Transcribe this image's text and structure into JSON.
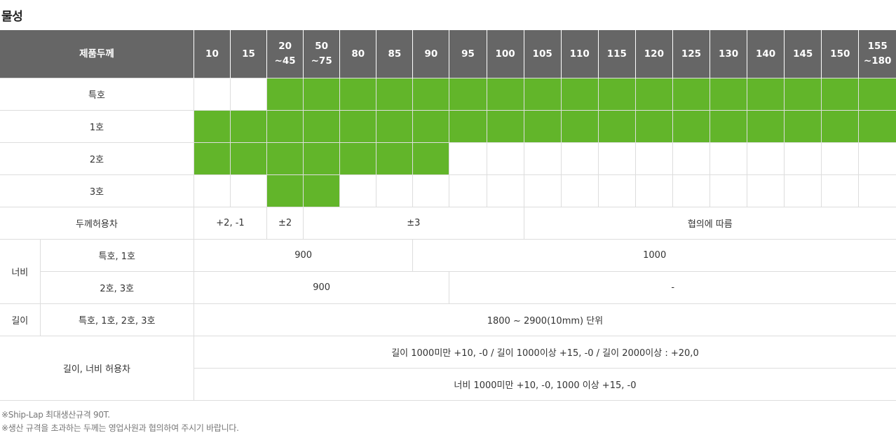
{
  "title": "물성",
  "table": {
    "header_label": "제품두께",
    "thickness": [
      [
        "10"
      ],
      [
        "15"
      ],
      [
        "20",
        "~45"
      ],
      [
        "50",
        "~75"
      ],
      [
        "80"
      ],
      [
        "85"
      ],
      [
        "90"
      ],
      [
        "95"
      ],
      [
        "100"
      ],
      [
        "105"
      ],
      [
        "110"
      ],
      [
        "115"
      ],
      [
        "120"
      ],
      [
        "125"
      ],
      [
        "130"
      ],
      [
        "140"
      ],
      [
        "145"
      ],
      [
        "150"
      ],
      [
        "155",
        "~180"
      ]
    ],
    "grades": [
      {
        "label": "특호",
        "available": [
          0,
          0,
          1,
          1,
          1,
          1,
          1,
          1,
          1,
          1,
          1,
          1,
          1,
          1,
          1,
          1,
          1,
          1,
          1
        ]
      },
      {
        "label": "1호",
        "available": [
          1,
          1,
          1,
          1,
          1,
          1,
          1,
          1,
          1,
          1,
          1,
          1,
          1,
          1,
          1,
          1,
          1,
          1,
          1
        ]
      },
      {
        "label": "2호",
        "available": [
          1,
          1,
          1,
          1,
          1,
          1,
          1,
          0,
          0,
          0,
          0,
          0,
          0,
          0,
          0,
          0,
          0,
          0,
          0
        ]
      },
      {
        "label": "3호",
        "available": [
          0,
          0,
          1,
          1,
          0,
          0,
          0,
          0,
          0,
          0,
          0,
          0,
          0,
          0,
          0,
          0,
          0,
          0,
          0
        ]
      }
    ],
    "thickness_tolerance": {
      "label": "두께허용차",
      "values": [
        "+2, -1",
        "±2",
        "±3",
        "협의에 따름"
      ]
    },
    "width": {
      "label": "너비",
      "rows": [
        {
          "label": "특호, 1호",
          "values": [
            "900",
            "1000"
          ]
        },
        {
          "label": "2호, 3호",
          "values": [
            "900",
            "-"
          ]
        }
      ]
    },
    "length": {
      "label": "길이",
      "sub_label": "특호, 1호, 2호, 3호",
      "value": "1800 ~ 2900(10mm) 단위"
    },
    "length_width_tolerance": {
      "label": "길이, 너비 허용차",
      "lines": [
        "길이 1000미만 +10, -0 / 길이 1000이상 +15, -0 / 길이 2000이상 : +20,0",
        "너비 1000미만 +10, -0, 1000 이상 +15, -0"
      ]
    }
  },
  "colors": {
    "available": "#62b52a",
    "header": "#666666"
  },
  "notes": [
    "※Ship-Lap 최대생산규격 90T.",
    "※생산 규격을 초과하는 두께는 영업사원과 협의하여 주시기 바랍니다."
  ]
}
